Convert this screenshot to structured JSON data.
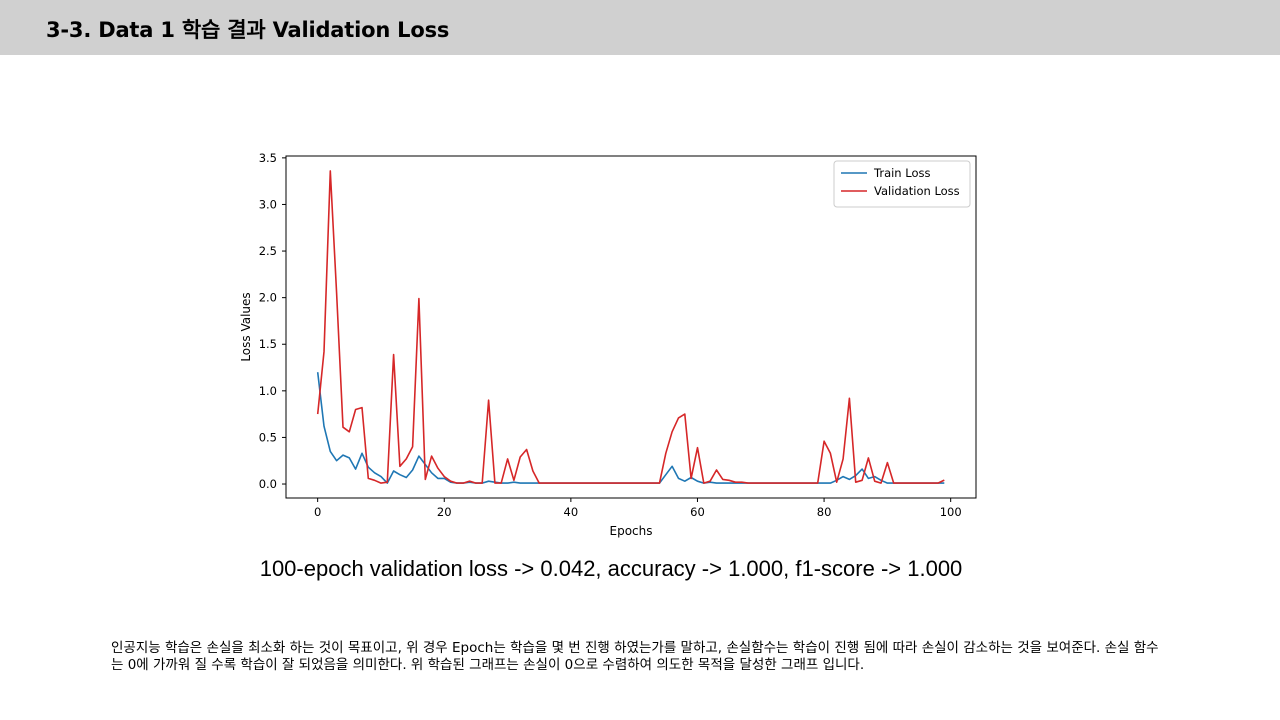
{
  "slide": {
    "title": "3-3. Data 1 학습 결과 Validation Loss",
    "summary": "100-epoch validation loss -> 0.042, accuracy -> 1.000, f1-score -> 1.000",
    "description": "인공지능 학습은 손실을 최소화 하는 것이 목표이고, 위 경우 Epoch는 학습을 몇 번 진행 하였는가를 말하고, 손실함수는 학습이 진행 됨에 따라 손실이 감소하는 것을 보여준다. 손실 함수는 0에 가까워 질 수록 학습이 잘 되었음을 의미한다. 위 학습된 그래프는 손실이 0으로 수렴하여 의도한 목적을 달성한 그래프 입니다."
  },
  "chart_data": {
    "type": "line",
    "title": "",
    "xlabel": "Epochs",
    "ylabel": "Loss Values",
    "xlim": [
      -5,
      104
    ],
    "ylim": [
      -0.15,
      3.52
    ],
    "xticks": [
      0,
      20,
      40,
      60,
      80,
      100
    ],
    "yticks": [
      0.0,
      0.5,
      1.0,
      1.5,
      2.0,
      2.5,
      3.0,
      3.5
    ],
    "grid": false,
    "legend_position": "top-right",
    "x": [
      0,
      1,
      2,
      3,
      4,
      5,
      6,
      7,
      8,
      9,
      10,
      11,
      12,
      13,
      14,
      15,
      16,
      17,
      18,
      19,
      20,
      21,
      22,
      23,
      24,
      25,
      26,
      27,
      28,
      29,
      30,
      31,
      32,
      33,
      34,
      35,
      36,
      37,
      38,
      39,
      40,
      41,
      42,
      43,
      44,
      45,
      46,
      47,
      48,
      49,
      50,
      51,
      52,
      53,
      54,
      55,
      56,
      57,
      58,
      59,
      60,
      61,
      62,
      63,
      64,
      65,
      66,
      67,
      68,
      69,
      70,
      71,
      72,
      73,
      74,
      75,
      76,
      77,
      78,
      79,
      80,
      81,
      82,
      83,
      84,
      85,
      86,
      87,
      88,
      89,
      90,
      91,
      92,
      93,
      94,
      95,
      96,
      97,
      98,
      99
    ],
    "series": [
      {
        "name": "Train Loss",
        "color": "#1f77b4",
        "values": [
          1.2,
          0.62,
          0.35,
          0.25,
          0.31,
          0.28,
          0.16,
          0.33,
          0.18,
          0.12,
          0.08,
          0.01,
          0.14,
          0.1,
          0.07,
          0.15,
          0.3,
          0.21,
          0.12,
          0.06,
          0.06,
          0.02,
          0.01,
          0.01,
          0.02,
          0.01,
          0.01,
          0.03,
          0.02,
          0.01,
          0.01,
          0.02,
          0.01,
          0.01,
          0.01,
          0.01,
          0.01,
          0.01,
          0.01,
          0.01,
          0.01,
          0.01,
          0.01,
          0.01,
          0.01,
          0.01,
          0.01,
          0.01,
          0.01,
          0.01,
          0.01,
          0.01,
          0.01,
          0.01,
          0.01,
          0.1,
          0.19,
          0.06,
          0.03,
          0.07,
          0.03,
          0.01,
          0.02,
          0.01,
          0.01,
          0.01,
          0.01,
          0.01,
          0.01,
          0.01,
          0.01,
          0.01,
          0.01,
          0.01,
          0.01,
          0.01,
          0.01,
          0.01,
          0.01,
          0.01,
          0.01,
          0.01,
          0.04,
          0.08,
          0.05,
          0.09,
          0.16,
          0.06,
          0.08,
          0.04,
          0.01,
          0.01,
          0.01,
          0.01,
          0.01,
          0.01,
          0.01,
          0.01,
          0.01,
          0.01
        ]
      },
      {
        "name": "Validation Loss",
        "color": "#d62728",
        "values": [
          0.75,
          1.42,
          3.36,
          2.05,
          0.61,
          0.56,
          0.8,
          0.82,
          0.06,
          0.04,
          0.01,
          0.02,
          1.39,
          0.19,
          0.27,
          0.4,
          1.99,
          0.05,
          0.3,
          0.17,
          0.08,
          0.03,
          0.01,
          0.01,
          0.03,
          0.01,
          0.01,
          0.9,
          0.01,
          0.01,
          0.27,
          0.04,
          0.29,
          0.37,
          0.14,
          0.01,
          0.01,
          0.01,
          0.01,
          0.01,
          0.01,
          0.01,
          0.01,
          0.01,
          0.01,
          0.01,
          0.01,
          0.01,
          0.01,
          0.01,
          0.01,
          0.01,
          0.01,
          0.01,
          0.01,
          0.33,
          0.56,
          0.71,
          0.75,
          0.06,
          0.39,
          0.01,
          0.03,
          0.15,
          0.05,
          0.04,
          0.02,
          0.02,
          0.01,
          0.01,
          0.01,
          0.01,
          0.01,
          0.01,
          0.01,
          0.01,
          0.01,
          0.01,
          0.01,
          0.01,
          0.46,
          0.33,
          0.02,
          0.27,
          0.92,
          0.02,
          0.04,
          0.28,
          0.03,
          0.01,
          0.23,
          0.01,
          0.01,
          0.01,
          0.01,
          0.01,
          0.01,
          0.01,
          0.01,
          0.042
        ]
      }
    ]
  }
}
